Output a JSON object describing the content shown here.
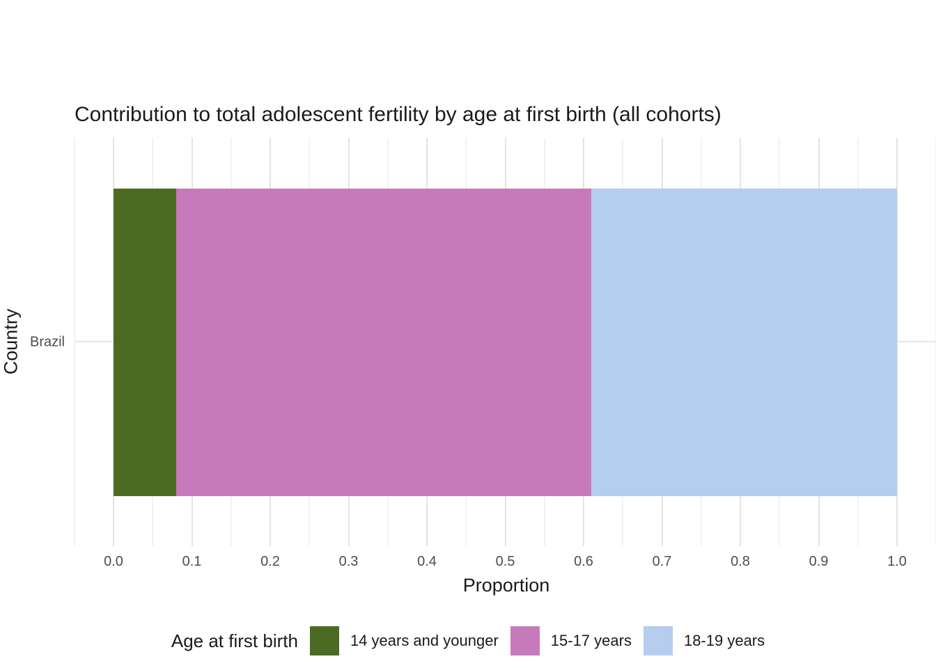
{
  "chart_data": {
    "type": "bar",
    "orientation": "horizontal",
    "stacked": true,
    "title": "Contribution to total adolescent fertility by age at first birth (all cohorts)",
    "xlabel": "Proportion",
    "ylabel": "Country",
    "categories": [
      "Brazil"
    ],
    "series": [
      {
        "name": "14 years and younger",
        "values": [
          0.08
        ],
        "color": "#4c6b22"
      },
      {
        "name": "15-17 years",
        "values": [
          0.53
        ],
        "color": "#c77abb"
      },
      {
        "name": "18-19 years",
        "values": [
          0.39
        ],
        "color": "#b5cdee"
      }
    ],
    "xlim": [
      0.0,
      1.0
    ],
    "x_ticks": [
      0.0,
      0.1,
      0.2,
      0.3,
      0.4,
      0.5,
      0.6,
      0.7,
      0.8,
      0.9,
      1.0
    ],
    "x_tick_labels": [
      "0.0",
      "0.1",
      "0.2",
      "0.3",
      "0.4",
      "0.5",
      "0.6",
      "0.7",
      "0.8",
      "0.9",
      "1.0"
    ],
    "minor_tick_step": 0.05,
    "grid": true,
    "legend": {
      "title": "Age at first birth",
      "position": "bottom"
    }
  },
  "colors": {
    "background": "#ffffff",
    "grid_major": "#e3e3e3",
    "grid_minor": "#f2f2f2",
    "tick_text": "#4d4d4d",
    "title_text": "#1a1a1a"
  }
}
